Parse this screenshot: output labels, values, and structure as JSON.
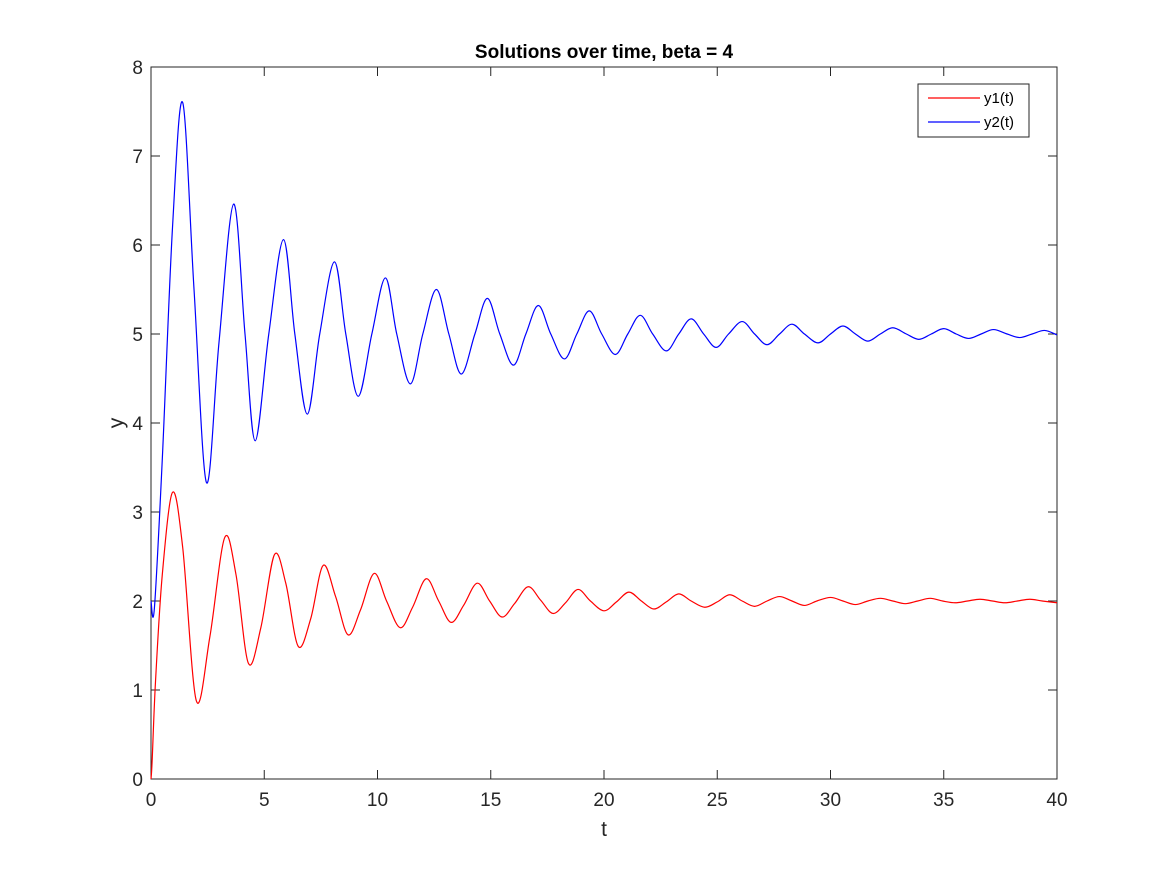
{
  "chart_data": {
    "type": "line",
    "title": "Solutions over time, beta = 4",
    "xlabel": "t",
    "ylabel": "y",
    "xlim": [
      0,
      40
    ],
    "ylim": [
      0,
      8
    ],
    "xticks": [
      0,
      5,
      10,
      15,
      20,
      25,
      30,
      35,
      40
    ],
    "yticks": [
      0,
      1,
      2,
      3,
      4,
      5,
      6,
      7,
      8
    ],
    "grid": false,
    "legend_position": "top-right",
    "series": [
      {
        "name": "y1(t)",
        "color": "#ff0000",
        "x": [
          0,
          0.05,
          0.2,
          0.5,
          0.95,
          1.4,
          2.0,
          2.6,
          3.25,
          3.75,
          4.3,
          4.85,
          5.45,
          5.95,
          6.5,
          7.05,
          7.6,
          8.15,
          8.7,
          9.25,
          9.85,
          10.4,
          11.0,
          11.55,
          12.15,
          12.7,
          13.25,
          13.8,
          14.4,
          14.95,
          15.5,
          16.05,
          16.65,
          17.2,
          17.75,
          18.3,
          18.85,
          19.4,
          20.0,
          20.55,
          21.1,
          21.65,
          22.2,
          22.75,
          23.3,
          23.85,
          24.45,
          25.0,
          25.55,
          26.1,
          26.65,
          27.2,
          27.75,
          28.3,
          28.85,
          29.4,
          30.0,
          30.55,
          31.1,
          31.65,
          32.2,
          32.75,
          33.3,
          33.85,
          34.4,
          34.95,
          35.5,
          36.05,
          36.6,
          37.15,
          37.7,
          38.25,
          38.8,
          39.35,
          40.0
        ],
        "y": [
          0,
          0.2,
          1.1,
          2.3,
          3.22,
          2.6,
          0.88,
          1.6,
          2.71,
          2.3,
          1.3,
          1.7,
          2.52,
          2.2,
          1.49,
          1.8,
          2.4,
          2.05,
          1.62,
          1.9,
          2.31,
          2.0,
          1.7,
          1.93,
          2.25,
          2.0,
          1.76,
          1.95,
          2.2,
          2.0,
          1.82,
          1.97,
          2.16,
          2.01,
          1.86,
          1.98,
          2.13,
          2.0,
          1.89,
          1.99,
          2.1,
          2.0,
          1.91,
          1.99,
          2.08,
          2.0,
          1.93,
          1.99,
          2.07,
          2.0,
          1.94,
          2.0,
          2.05,
          2.0,
          1.95,
          2.0,
          2.04,
          2.0,
          1.96,
          2.0,
          2.03,
          2.0,
          1.97,
          2.0,
          2.03,
          2.0,
          1.98,
          2.0,
          2.02,
          2.0,
          1.98,
          2.0,
          2.02,
          2.0,
          1.98
        ]
      },
      {
        "name": "y2(t)",
        "color": "#0000ff",
        "x": [
          0,
          0.15,
          0.5,
          0.95,
          1.4,
          1.9,
          2.45,
          3.0,
          3.65,
          4.15,
          4.6,
          5.2,
          5.85,
          6.35,
          6.9,
          7.45,
          8.1,
          8.6,
          9.15,
          9.75,
          10.35,
          10.85,
          11.45,
          12.0,
          12.6,
          13.15,
          13.7,
          14.3,
          14.85,
          15.4,
          16.0,
          16.55,
          17.1,
          17.65,
          18.25,
          18.8,
          19.35,
          19.9,
          20.5,
          21.05,
          21.6,
          22.15,
          22.75,
          23.3,
          23.85,
          24.4,
          24.95,
          25.5,
          26.1,
          26.65,
          27.2,
          27.75,
          28.3,
          28.85,
          29.45,
          30.0,
          30.55,
          31.1,
          31.65,
          32.2,
          32.75,
          33.35,
          33.9,
          34.45,
          35.0,
          35.55,
          36.1,
          36.65,
          37.2,
          37.8,
          38.35,
          38.9,
          39.45,
          40.0
        ],
        "y": [
          2.0,
          1.92,
          3.6,
          6.2,
          7.6,
          5.5,
          3.33,
          4.9,
          6.46,
          5.0,
          3.8,
          5.0,
          6.06,
          5.0,
          4.1,
          5.0,
          5.81,
          5.0,
          4.3,
          5.0,
          5.63,
          5.0,
          4.44,
          5.0,
          5.5,
          5.0,
          4.55,
          5.0,
          5.4,
          5.0,
          4.65,
          5.0,
          5.32,
          5.0,
          4.72,
          5.0,
          5.26,
          5.0,
          4.77,
          5.0,
          5.21,
          5.0,
          4.81,
          5.0,
          5.17,
          5.0,
          4.85,
          5.0,
          5.14,
          5.0,
          4.88,
          5.0,
          5.11,
          5.0,
          4.9,
          5.0,
          5.09,
          5.0,
          4.92,
          5.0,
          5.07,
          5.0,
          4.94,
          5.0,
          5.06,
          5.0,
          4.95,
          5.0,
          5.05,
          5.0,
          4.96,
          5.0,
          5.04,
          4.99
        ]
      }
    ]
  }
}
